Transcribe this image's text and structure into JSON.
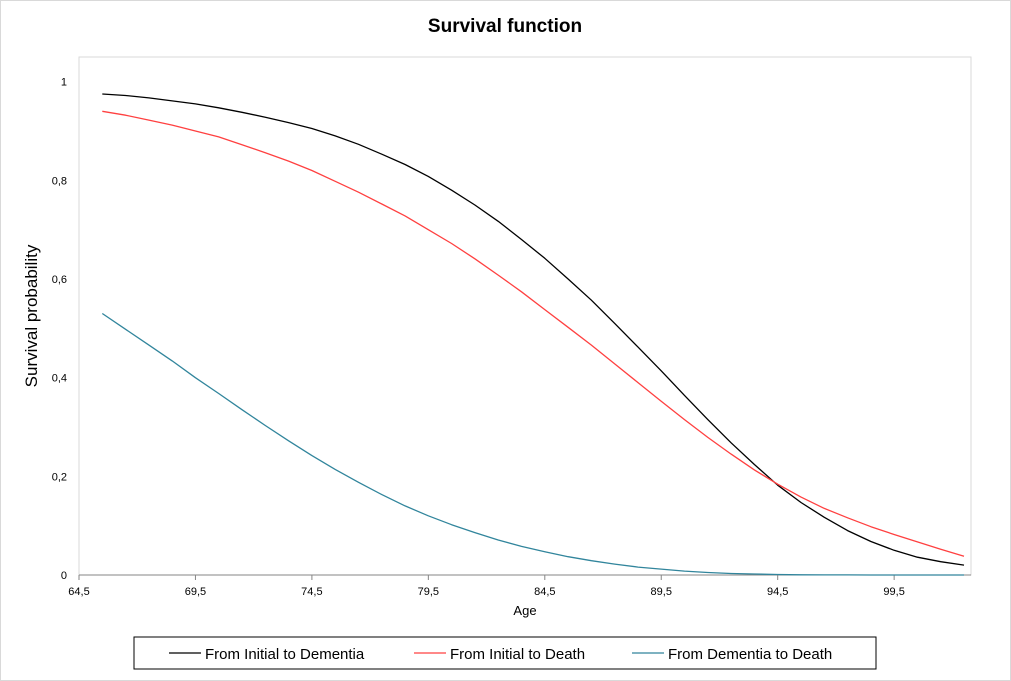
{
  "chart_data": {
    "type": "line",
    "title": "Survival function",
    "xlabel": "Age",
    "ylabel": "Survival probability",
    "xlim": [
      64.5,
      102.8
    ],
    "ylim": [
      0,
      1.05
    ],
    "x_ticks": [
      64.5,
      69.5,
      74.5,
      79.5,
      84.5,
      89.5,
      94.5,
      99.5
    ],
    "x_tick_labels": [
      "64,5",
      "69,5",
      "74,5",
      "79,5",
      "84,5",
      "89,5",
      "94,5",
      "99,5"
    ],
    "y_ticks": [
      0,
      0.2,
      0.4,
      0.6,
      0.8,
      1
    ],
    "y_tick_labels": [
      "0",
      "0,2",
      "0,4",
      "0,6",
      "0,8",
      "1"
    ],
    "grid": false,
    "legend_position": "bottom",
    "series": [
      {
        "name": "From Initial to Dementia",
        "color": "#000000",
        "x": [
          65.5,
          66.5,
          67.5,
          68.5,
          69.5,
          70.5,
          71.5,
          72.5,
          73.5,
          74.5,
          75.5,
          76.5,
          77.5,
          78.5,
          79.5,
          80.5,
          81.5,
          82.5,
          83.5,
          84.5,
          85.5,
          86.5,
          87.5,
          88.5,
          89.5,
          90.5,
          91.5,
          92.5,
          93.5,
          94.5,
          95.5,
          96.5,
          97.5,
          98.5,
          99.5,
          100.5,
          101.5,
          102.5
        ],
        "y": [
          0.975,
          0.972,
          0.967,
          0.961,
          0.955,
          0.947,
          0.938,
          0.928,
          0.917,
          0.905,
          0.89,
          0.873,
          0.853,
          0.832,
          0.808,
          0.78,
          0.75,
          0.717,
          0.68,
          0.642,
          0.6,
          0.557,
          0.51,
          0.462,
          0.414,
          0.364,
          0.315,
          0.268,
          0.224,
          0.182,
          0.147,
          0.117,
          0.09,
          0.068,
          0.05,
          0.036,
          0.027,
          0.02
        ]
      },
      {
        "name": "From Initial to Death",
        "color": "#ff4040",
        "x": [
          65.5,
          66.5,
          67.5,
          68.5,
          69.5,
          70.5,
          71.5,
          72.5,
          73.5,
          74.5,
          75.5,
          76.5,
          77.5,
          78.5,
          79.5,
          80.5,
          81.5,
          82.5,
          83.5,
          84.5,
          85.5,
          86.5,
          87.5,
          88.5,
          89.5,
          90.5,
          91.5,
          92.5,
          93.5,
          94.5,
          95.5,
          96.5,
          97.5,
          98.5,
          99.5,
          100.5,
          101.5,
          102.5
        ],
        "y": [
          0.94,
          0.932,
          0.922,
          0.912,
          0.9,
          0.888,
          0.872,
          0.856,
          0.839,
          0.82,
          0.798,
          0.776,
          0.752,
          0.728,
          0.7,
          0.672,
          0.641,
          0.608,
          0.574,
          0.538,
          0.502,
          0.466,
          0.428,
          0.39,
          0.352,
          0.315,
          0.279,
          0.245,
          0.213,
          0.184,
          0.158,
          0.135,
          0.116,
          0.098,
          0.082,
          0.067,
          0.052,
          0.038
        ]
      },
      {
        "name": "From Dementia to Death",
        "color": "#31859c",
        "x": [
          65.5,
          66.5,
          67.5,
          68.5,
          69.5,
          70.5,
          71.5,
          72.5,
          73.5,
          74.5,
          75.5,
          76.5,
          77.5,
          78.5,
          79.5,
          80.5,
          81.5,
          82.5,
          83.5,
          84.5,
          85.5,
          86.5,
          87.5,
          88.5,
          89.5,
          90.5,
          91.5,
          92.5,
          93.5,
          94.5,
          95.5,
          96.5,
          97.5,
          98.5,
          99.5,
          100.5,
          101.5,
          102.5
        ],
        "y": [
          0.53,
          0.498,
          0.466,
          0.434,
          0.4,
          0.368,
          0.335,
          0.303,
          0.272,
          0.242,
          0.214,
          0.188,
          0.163,
          0.14,
          0.12,
          0.102,
          0.086,
          0.071,
          0.058,
          0.047,
          0.037,
          0.029,
          0.022,
          0.016,
          0.012,
          0.008,
          0.005,
          0.003,
          0.002,
          0.001,
          0.0005,
          0.0003,
          0.0002,
          0.0001,
          0.0,
          0.0,
          0.0,
          0.0
        ]
      }
    ]
  }
}
